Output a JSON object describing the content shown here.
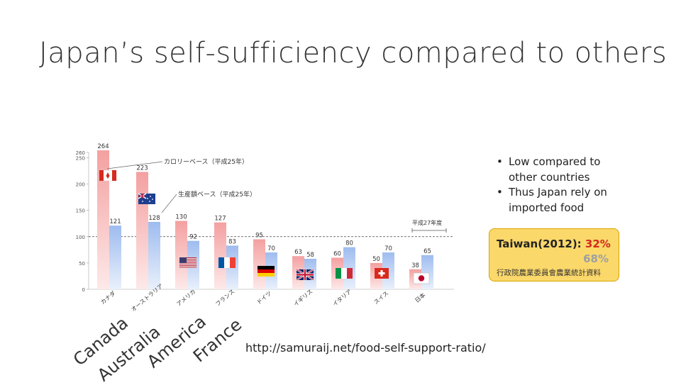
{
  "slide": {
    "title": "Japan’s self-sufficiency compared to others",
    "bullets": [
      "Low compared to other countries",
      "Thus Japan rely on imported food"
    ],
    "bullet_mark": "•",
    "taiwan": {
      "label": "Taiwan(2012):",
      "calorie_pct": "32%",
      "production_pct": "68%",
      "source": "行政院農業委員會農業統計資料",
      "accent": "#fbd86a",
      "red": "#d4281c"
    },
    "url": "http://samuraij.net/food-self-support-ratio/",
    "english_country_labels": [
      "Canada",
      "Australia",
      "America",
      "France"
    ]
  },
  "chart_data": {
    "type": "bar",
    "categories": [
      "カナダ",
      "オーストラリア",
      "アメリカ",
      "フランス",
      "ドイツ",
      "イギリス",
      "イタリア",
      "スイス",
      "日本"
    ],
    "series": [
      {
        "name": "カロリーベース（平成25年）",
        "values": [
          264,
          223,
          130,
          127,
          95,
          63,
          60,
          50,
          38
        ],
        "color": "#f4a6a6"
      },
      {
        "name": "生産額ベース（平成25年）",
        "values": [
          121,
          128,
          92,
          83,
          70,
          58,
          80,
          70,
          65
        ],
        "color": "#aac4ee"
      }
    ],
    "yticks": [
      "260",
      "250",
      "200",
      "150",
      "100",
      "50",
      "0"
    ],
    "ylim": [
      0,
      260
    ],
    "reference_line": 100,
    "reference_label": "平成27年度",
    "flags": [
      "canada",
      "australia",
      "usa",
      "france",
      "germany",
      "uk",
      "italy",
      "switzerland",
      "japan"
    ],
    "grid": false
  }
}
